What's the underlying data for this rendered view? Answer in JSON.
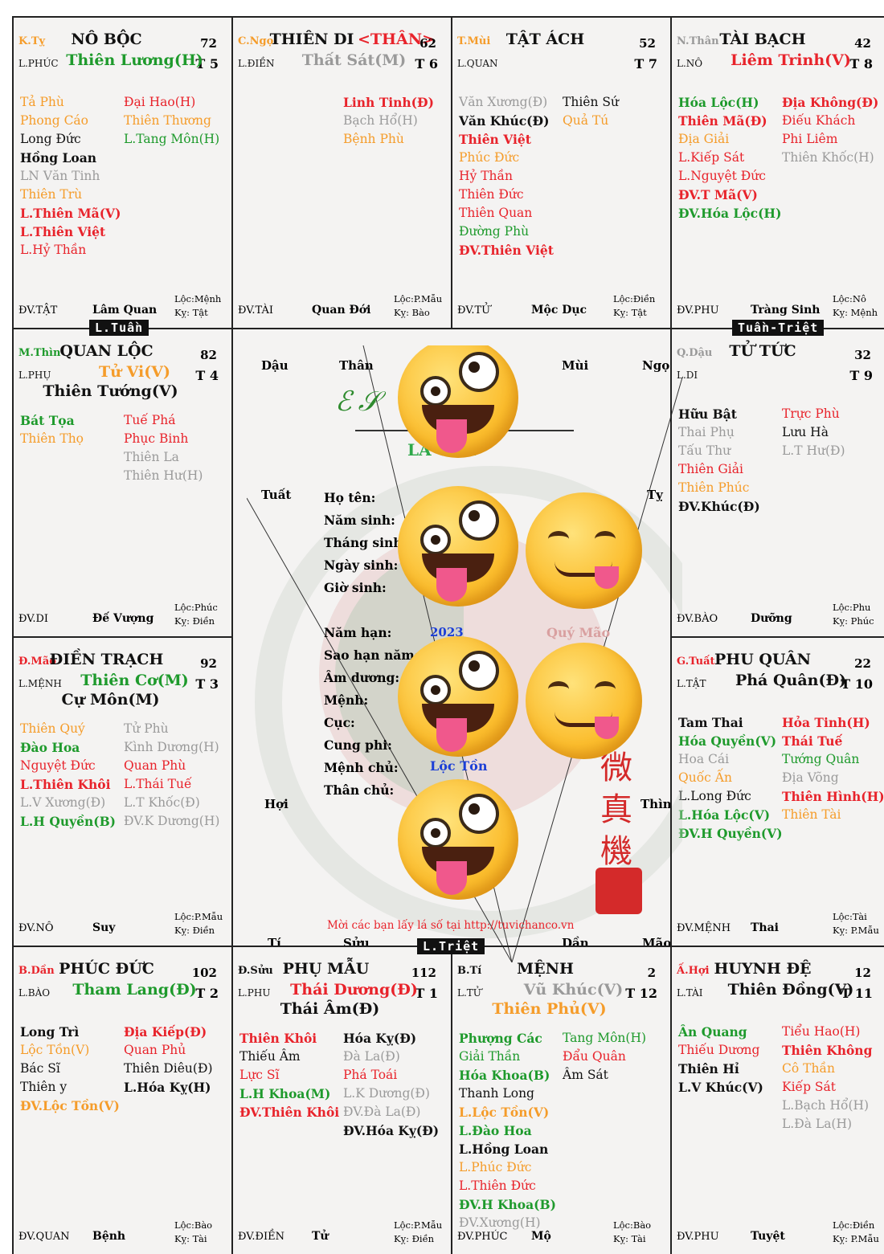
{
  "colors": {
    "red": "#e8232b",
    "green": "#1e9a2c",
    "orange": "#f59c2a",
    "gray": "#9a9a9a",
    "black": "#111111",
    "blue": "#1c3fd6"
  },
  "tags": {
    "t1": "L.Tuần",
    "t2": "Tuần-Triệt",
    "t3": "L.Triệt"
  },
  "cells": [
    {
      "id": "nb",
      "pos": {
        "text": "K.Tỵ",
        "color": "orange"
      },
      "title": "NÔ BỘC",
      "age": "72",
      "sub": "L.PHÚC",
      "t": "T 5",
      "main": [
        {
          "text": "Thiên Lương(H)",
          "color": "green"
        }
      ],
      "left": [
        {
          "text": "Tả Phù",
          "color": "orange"
        },
        {
          "text": "Phong Cáo",
          "color": "orange"
        },
        {
          "text": "Long Đức",
          "color": "black"
        },
        {
          "text": "Hồng Loan",
          "color": "black",
          "b": 1
        },
        {
          "text": "LN Văn Tinh",
          "color": "gray"
        },
        {
          "text": "Thiên Trù",
          "color": "orange"
        },
        {
          "text": "L.Thiên Mã(V)",
          "color": "red",
          "b": 1
        },
        {
          "text": "L.Thiên Việt",
          "color": "red",
          "b": 1
        },
        {
          "text": "L.Hỷ Thần",
          "color": "red"
        }
      ],
      "right": [
        {
          "text": "Đại Hao(H)",
          "color": "red"
        },
        {
          "text": "Thiên Thương",
          "color": "orange"
        },
        {
          "text": "L.Tang Môn(H)",
          "color": "green"
        }
      ],
      "foot": {
        "a": "ĐV.TẬT",
        "b": "Lâm Quan",
        "c1": "Lộc:Mệnh",
        "c2": "Kỵ: Tật"
      }
    },
    {
      "id": "td",
      "pos": {
        "text": "C.Ngọ",
        "color": "orange"
      },
      "title": "THIÊN DI",
      "title2": "<THÂN>",
      "age": "62",
      "sub": "L.ĐIỀN",
      "t": "T 6",
      "main": [
        {
          "text": "Thất Sát(M)",
          "color": "gray"
        }
      ],
      "left": [],
      "right": [
        {
          "text": "Linh Tinh(Đ)",
          "color": "red",
          "b": 1
        },
        {
          "text": "Bạch Hổ(H)",
          "color": "gray"
        },
        {
          "text": "Bệnh Phù",
          "color": "orange"
        }
      ],
      "foot": {
        "a": "ĐV.TÀI",
        "b": "Quan Đới",
        "c1": "Lộc:P.Mẫu",
        "c2": "Kỵ: Bào"
      }
    },
    {
      "id": "ta",
      "pos": {
        "text": "T.Mùi",
        "color": "orange"
      },
      "title": "TẬT ÁCH",
      "age": "52",
      "sub": "L.QUAN",
      "t": "T 7",
      "main": [],
      "left": [
        {
          "text": "Văn Xương(Đ)",
          "color": "gray"
        },
        {
          "text": "Văn Khúc(Đ)",
          "color": "black",
          "b": 1
        },
        {
          "text": "Thiên Việt",
          "color": "red",
          "b": 1
        },
        {
          "text": "Phúc Đức",
          "color": "orange"
        },
        {
          "text": "Hỷ Thần",
          "color": "red"
        },
        {
          "text": "Thiên Đức",
          "color": "red"
        },
        {
          "text": "Thiên Quan",
          "color": "red"
        },
        {
          "text": "Đường Phù",
          "color": "green"
        },
        {
          "text": "ĐV.Thiên Việt",
          "color": "red",
          "b": 1
        }
      ],
      "right": [
        {
          "text": "Thiên Sứ",
          "color": "black"
        },
        {
          "text": "Quả Tú",
          "color": "orange"
        }
      ],
      "foot": {
        "a": "ĐV.TỬ",
        "b": "Mộc Dục",
        "c1": "Lộc:Điền",
        "c2": "Kỵ: Tật"
      }
    },
    {
      "id": "tb",
      "pos": {
        "text": "N.Thân",
        "color": "gray"
      },
      "title": "TÀI BẠCH",
      "age": "42",
      "sub": "L.NÔ",
      "t": "T 8",
      "main": [
        {
          "text": "Liêm Trinh(V)",
          "color": "red"
        }
      ],
      "left": [
        {
          "text": "Hóa Lộc(H)",
          "color": "green",
          "b": 1
        },
        {
          "text": "Thiên Mã(Đ)",
          "color": "red",
          "b": 1
        },
        {
          "text": "Địa Giải",
          "color": "orange"
        },
        {
          "text": "L.Kiếp Sát",
          "color": "red"
        },
        {
          "text": "L.Nguyệt Đức",
          "color": "red"
        },
        {
          "text": "ĐV.T Mã(V)",
          "color": "red",
          "b": 1
        },
        {
          "text": "ĐV.Hóa Lộc(H)",
          "color": "green",
          "b": 1
        }
      ],
      "right": [
        {
          "text": "Địa Không(Đ)",
          "color": "red",
          "b": 1
        },
        {
          "text": "Điếu Khách",
          "color": "red"
        },
        {
          "text": "Phi Liêm",
          "color": "red"
        },
        {
          "text": "Thiên Khốc(H)",
          "color": "gray"
        }
      ],
      "foot": {
        "a": "ĐV.PHU",
        "b": "Tràng Sinh",
        "c1": "Lộc:Nô",
        "c2": "Kỵ: Mệnh"
      }
    },
    {
      "id": "ql",
      "pos": {
        "text": "M.Thìn",
        "color": "green"
      },
      "title": "QUAN LỘC",
      "age": "82",
      "sub": "L.PHỤ",
      "t": "T 4",
      "main": [
        {
          "text": "Tử Vi(V)",
          "color": "orange"
        },
        {
          "text": "Thiên Tướng(V)",
          "color": "black"
        }
      ],
      "left": [
        {
          "text": "Bát Tọa",
          "color": "green",
          "b": 1
        },
        {
          "text": "Thiên Thọ",
          "color": "orange"
        }
      ],
      "right": [
        {
          "text": "Tuế Phá",
          "color": "red"
        },
        {
          "text": "Phục Binh",
          "color": "red"
        },
        {
          "text": "Thiên La",
          "color": "gray"
        },
        {
          "text": "Thiên Hư(H)",
          "color": "gray"
        }
      ],
      "foot": {
        "a": "ĐV.DI",
        "b": "Đế Vượng",
        "c1": "Lộc:Phúc",
        "c2": "Kỵ: Điền"
      }
    },
    {
      "id": "tt",
      "pos": {
        "text": "Q.Dậu",
        "color": "gray"
      },
      "title": "TỬ TỨC",
      "age": "32",
      "sub": "L.DI",
      "t": "T 9",
      "main": [],
      "left": [
        {
          "text": "Hữu Bật",
          "color": "black",
          "b": 1
        },
        {
          "text": "Thai Phụ",
          "color": "gray"
        },
        {
          "text": "Tấu Thư",
          "color": "gray"
        },
        {
          "text": "Thiên Giải",
          "color": "red"
        },
        {
          "text": "Thiên Phúc",
          "color": "orange"
        },
        {
          "text": "ĐV.Khúc(Đ)",
          "color": "black",
          "b": 1
        }
      ],
      "right": [
        {
          "text": "Trực Phù",
          "color": "red"
        },
        {
          "text": "Lưu Hà",
          "color": "black"
        },
        {
          "text": "L.T Hư(Đ)",
          "color": "gray"
        }
      ],
      "foot": {
        "a": "ĐV.BÀO",
        "b": "Dưỡng",
        "c1": "Lộc:Phu",
        "c2": "Kỵ: Phúc"
      }
    },
    {
      "id": "dt",
      "pos": {
        "text": "Đ.Mão",
        "color": "red"
      },
      "title": "ĐIỀN TRẠCH",
      "age": "92",
      "sub": "L.MỆNH",
      "t": "T 3",
      "main": [
        {
          "text": "Thiên Cơ(M)",
          "color": "green"
        },
        {
          "text": "Cự Môn(M)",
          "color": "black"
        }
      ],
      "left": [
        {
          "text": "Thiên Quý",
          "color": "orange"
        },
        {
          "text": "Đào Hoa",
          "color": "green",
          "b": 1
        },
        {
          "text": "Nguyệt Đức",
          "color": "red"
        },
        {
          "text": "L.Thiên Khôi",
          "color": "red",
          "b": 1
        },
        {
          "text": "L.V Xương(Đ)",
          "color": "gray"
        },
        {
          "text": "L.H Quyền(B)",
          "color": "green",
          "b": 1
        }
      ],
      "right": [
        {
          "text": "Tử Phù",
          "color": "gray"
        },
        {
          "text": "Kình Dương(H)",
          "color": "gray"
        },
        {
          "text": "Quan Phù",
          "color": "red"
        },
        {
          "text": "L.Thái Tuế",
          "color": "red"
        },
        {
          "text": "L.T Khốc(Đ)",
          "color": "gray"
        },
        {
          "text": "ĐV.K Dương(H)",
          "color": "gray"
        }
      ],
      "foot": {
        "a": "ĐV.NÔ",
        "b": "Suy",
        "c1": "Lộc:P.Mẫu",
        "c2": "Kỵ: Điền"
      }
    },
    {
      "id": "pq",
      "pos": {
        "text": "G.Tuất",
        "color": "red"
      },
      "title": "PHU QUÂN",
      "age": "22",
      "sub": "L.TẬT",
      "t": "T 10",
      "main": [
        {
          "text": "Phá Quân(Đ)",
          "color": "black"
        }
      ],
      "left": [
        {
          "text": "Tam Thai",
          "color": "black",
          "b": 1
        },
        {
          "text": "Hóa Quyền(V)",
          "color": "green",
          "b": 1
        },
        {
          "text": "Hoa Cái",
          "color": "gray"
        },
        {
          "text": "Quốc Ấn",
          "color": "orange"
        },
        {
          "text": "L.Long Đức",
          "color": "black"
        },
        {
          "text": "L.Hóa Lộc(V)",
          "color": "green",
          "b": 1
        },
        {
          "text": "ĐV.H Quyền(V)",
          "color": "green",
          "b": 1
        }
      ],
      "right": [
        {
          "text": "Hỏa Tinh(H)",
          "color": "red",
          "b": 1
        },
        {
          "text": "Thái Tuế",
          "color": "red",
          "b": 1
        },
        {
          "text": "Tướng Quân",
          "color": "green"
        },
        {
          "text": "Địa Võng",
          "color": "gray"
        },
        {
          "text": "Thiên Hình(H)",
          "color": "red",
          "b": 1
        },
        {
          "text": "Thiên Tài",
          "color": "orange"
        }
      ],
      "foot": {
        "a": "ĐV.MỆNH",
        "b": "Thai",
        "c1": "Lộc:Tài",
        "c2": "Kỵ: P.Mẫu"
      }
    },
    {
      "id": "pd",
      "pos": {
        "text": "B.Dần",
        "color": "red"
      },
      "title": "PHÚC ĐỨC",
      "age": "102",
      "sub": "L.BÀO",
      "t": "T 2",
      "main": [
        {
          "text": "Tham Lang(Đ)",
          "color": "green"
        }
      ],
      "left": [
        {
          "text": "Long Trì",
          "color": "black",
          "b": 1
        },
        {
          "text": "Lộc Tồn(V)",
          "color": "orange"
        },
        {
          "text": "Bác Sĩ",
          "color": "black"
        },
        {
          "text": "Thiên y",
          "color": "black"
        },
        {
          "text": "ĐV.Lộc Tồn(V)",
          "color": "orange",
          "b": 1
        }
      ],
      "right": [
        {
          "text": "Địa Kiếp(Đ)",
          "color": "red",
          "b": 1
        },
        {
          "text": "Quan Phủ",
          "color": "red"
        },
        {
          "text": "Thiên Diêu(Đ)",
          "color": "black"
        },
        {
          "text": "L.Hóa Kỵ(H)",
          "color": "black",
          "b": 1
        }
      ],
      "foot": {
        "a": "ĐV.QUAN",
        "b": "Bệnh",
        "c1": "Lộc:Bào",
        "c2": "Kỵ: Tài"
      }
    },
    {
      "id": "pm",
      "pos": {
        "text": "Đ.Sửu",
        "color": "black"
      },
      "title": "PHỤ MẪU",
      "age": "112",
      "sub": "L.PHU",
      "t": "T 1",
      "main": [
        {
          "text": "Thái Dương(Đ)",
          "color": "red"
        },
        {
          "text": "Thái Âm(Đ)",
          "color": "black"
        }
      ],
      "left": [
        {
          "text": "Thiên Khôi",
          "color": "red",
          "b": 1
        },
        {
          "text": "Thiếu Âm",
          "color": "black"
        },
        {
          "text": "Lực Sĩ",
          "color": "red"
        },
        {
          "text": "L.H Khoa(M)",
          "color": "green",
          "b": 1
        },
        {
          "text": "ĐV.Thiên Khôi",
          "color": "red",
          "b": 1
        }
      ],
      "right": [
        {
          "text": "Hóa Kỵ(Đ)",
          "color": "black",
          "b": 1
        },
        {
          "text": "Đà La(Đ)",
          "color": "gray"
        },
        {
          "text": "Phá Toái",
          "color": "red"
        },
        {
          "text": "L.K Dương(Đ)",
          "color": "gray"
        },
        {
          "text": "ĐV.Đà La(Đ)",
          "color": "gray"
        },
        {
          "text": "ĐV.Hóa Kỵ(Đ)",
          "color": "black",
          "b": 1
        }
      ],
      "foot": {
        "a": "ĐV.ĐIỀN",
        "b": "Tử",
        "c1": "Lộc:P.Mẫu",
        "c2": "Kỵ: Điền"
      }
    },
    {
      "id": "me",
      "pos": {
        "text": "B.Tí",
        "color": "black"
      },
      "title": "MỆNH",
      "age": "2",
      "sub": "L.TỬ",
      "t": "T 12",
      "main": [
        {
          "text": "Vũ Khúc(V)",
          "color": "gray"
        },
        {
          "text": "Thiên Phủ(V)",
          "color": "orange"
        }
      ],
      "left": [
        {
          "text": "Phượng Các",
          "color": "green",
          "b": 1
        },
        {
          "text": "Giải Thần",
          "color": "green"
        },
        {
          "text": "Hóa Khoa(B)",
          "color": "green",
          "b": 1
        },
        {
          "text": "Thanh Long",
          "color": "black"
        },
        {
          "text": "L.Lộc Tồn(V)",
          "color": "orange",
          "b": 1
        },
        {
          "text": "L.Đào Hoa",
          "color": "green",
          "b": 1
        },
        {
          "text": "L.Hồng Loan",
          "color": "black",
          "b": 1
        },
        {
          "text": "L.Phúc Đức",
          "color": "orange"
        },
        {
          "text": "L.Thiên Đức",
          "color": "red"
        },
        {
          "text": "ĐV.H Khoa(B)",
          "color": "green",
          "b": 1
        },
        {
          "text": "ĐV.Xương(H)",
          "color": "gray"
        }
      ],
      "right": [
        {
          "text": "Tang Môn(H)",
          "color": "green"
        },
        {
          "text": "Đẩu Quân",
          "color": "red"
        },
        {
          "text": "Âm Sát",
          "color": "black"
        }
      ],
      "foot": {
        "a": "ĐV.PHÚC",
        "b": "Mộ",
        "c1": "Lộc:Bào",
        "c2": "Kỵ: Tài"
      }
    },
    {
      "id": "hd",
      "pos": {
        "text": "Ấ.Hợi",
        "color": "red"
      },
      "title": "HUYNH ĐỆ",
      "age": "12",
      "sub": "L.TÀI",
      "t": "T 11",
      "main": [
        {
          "text": "Thiên Đồng(V)",
          "color": "black"
        }
      ],
      "left": [
        {
          "text": "Ân Quang",
          "color": "green",
          "b": 1
        },
        {
          "text": "Thiếu Dương",
          "color": "red"
        },
        {
          "text": "Thiên Hỉ",
          "color": "black",
          "b": 1
        },
        {
          "text": "L.V Khúc(V)",
          "color": "black",
          "b": 1
        }
      ],
      "right": [
        {
          "text": "Tiểu Hao(H)",
          "color": "red"
        },
        {
          "text": "Thiên Không",
          "color": "red",
          "b": 1
        },
        {
          "text": "Cô Thần",
          "color": "orange"
        },
        {
          "text": "Kiếp Sát",
          "color": "red"
        },
        {
          "text": "L.Bạch Hổ(H)",
          "color": "gray"
        },
        {
          "text": "L.Đà La(H)",
          "color": "gray"
        }
      ],
      "foot": {
        "a": "ĐV.PHU",
        "b": "Tuyệt",
        "c1": "Lộc:Điền",
        "c2": "Kỵ: P.Mẫu"
      }
    }
  ],
  "center": {
    "branches": {
      "dau": "Dậu",
      "than": "Thân",
      "mui": "Mùi",
      "ngo": "Ngọ",
      "tuat": "Tuất",
      "ty": "Tỵ",
      "hoi": "Hợi",
      "thin": "Thìn",
      "ti": "Tí",
      "suu": "Sửu",
      "dan": "Dần",
      "mao": "Mão"
    },
    "brand_text": "LA      U VI",
    "labels": [
      "Họ tên:",
      "Năm sinh:",
      "Tháng sinh:",
      "Ngày sinh:",
      "Giờ sinh:",
      "",
      "Năm hạn:",
      "Sao hạn năm:",
      "Âm dương:",
      "Mệnh:",
      "Cục:",
      "Cung phi:",
      "Mệnh chủ:",
      "Thân chủ:"
    ],
    "nam_han_value": "2023",
    "nam_han_can_chi": "Quý Mão",
    "menh_chu_value": "Lộc Tồn",
    "seal_chars": "微真機",
    "footer_note": "Mời các bạn lấy lá số tại http://tuvichanco.vn"
  }
}
